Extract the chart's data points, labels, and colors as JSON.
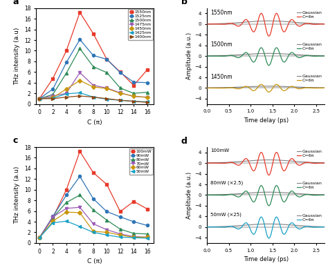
{
  "panel_a": {
    "x": [
      0,
      2,
      4,
      6,
      8,
      10,
      12,
      14,
      16
    ],
    "series": [
      {
        "label": "1550nm",
        "color": "#e8392a",
        "marker": "s",
        "y": [
          1.0,
          4.8,
          10.0,
          17.2,
          13.2,
          8.4,
          6.0,
          3.5,
          6.4
        ]
      },
      {
        "label": "1525nm",
        "color": "#2e75b6",
        "marker": "o",
        "y": [
          1.0,
          2.8,
          7.8,
          12.1,
          9.1,
          8.4,
          5.9,
          4.1,
          4.0
        ]
      },
      {
        "label": "1500nm",
        "color": "#2e8b57",
        "marker": "^",
        "y": [
          1.0,
          1.8,
          5.8,
          10.4,
          7.0,
          5.9,
          3.0,
          2.0,
          2.2
        ]
      },
      {
        "label": "1475nm",
        "color": "#9b59b6",
        "marker": "v",
        "y": [
          1.0,
          1.5,
          2.0,
          5.9,
          3.5,
          3.0,
          2.1,
          1.4,
          1.3
        ]
      },
      {
        "label": "1450nm",
        "color": "#c8960c",
        "marker": "D",
        "y": [
          1.0,
          1.2,
          2.8,
          4.4,
          3.2,
          2.9,
          2.0,
          1.5,
          1.2
        ]
      },
      {
        "label": "1425nm",
        "color": "#17a0c4",
        "marker": "<",
        "y": [
          1.0,
          1.1,
          1.9,
          2.1,
          1.3,
          0.9,
          0.7,
          0.5,
          0.4
        ]
      },
      {
        "label": "1400nm",
        "color": "#8b4513",
        "marker": ">",
        "y": [
          1.0,
          1.0,
          1.3,
          1.5,
          1.3,
          1.0,
          0.7,
          0.5,
          0.3
        ]
      }
    ],
    "xlabel": "C (π)",
    "ylabel": "THz intensity (a.u)",
    "ylim": [
      0,
      18
    ],
    "yticks": [
      0,
      2,
      4,
      6,
      8,
      10,
      12,
      14,
      16,
      18
    ],
    "xticks": [
      0,
      2,
      4,
      6,
      8,
      10,
      12,
      14,
      16
    ],
    "label": "a"
  },
  "panel_b": {
    "t": {
      "start": 0.0,
      "end": 2.7,
      "n": 500
    },
    "rows": [
      {
        "wavelength": "1550nm",
        "color": "#e8392a",
        "gaussian_color": "#808080",
        "amp_chirp": 4.5,
        "amp_gauss": 1.2,
        "t0": 1.42,
        "sigma_gauss": 0.55,
        "sigma_chirp": 0.38,
        "freq": 2.8,
        "phase": -1.57,
        "ylim": [
          -6,
          6
        ],
        "yticks": [
          -4,
          0,
          4
        ]
      },
      {
        "wavelength": "1500nm",
        "color": "#2e8b57",
        "gaussian_color": "#808080",
        "amp_chirp": 3.5,
        "amp_gauss": 1.0,
        "t0": 1.42,
        "sigma_gauss": 0.55,
        "sigma_chirp": 0.38,
        "freq": 2.8,
        "phase": -1.57,
        "ylim": [
          -6,
          6
        ],
        "yticks": [
          -4,
          0,
          4
        ]
      },
      {
        "wavelength": "1450nm",
        "color": "#c8960c",
        "gaussian_color": "#808080",
        "amp_chirp": 1.5,
        "amp_gauss": 0.7,
        "t0": 1.42,
        "sigma_gauss": 0.55,
        "sigma_chirp": 0.4,
        "freq": 2.8,
        "phase": -1.57,
        "ylim": [
          -6,
          6
        ],
        "yticks": [
          -4,
          0,
          4
        ]
      }
    ],
    "xlabel": "Time delay (ps)",
    "ylabel": "Amplitude (a.u.)",
    "label": "b",
    "legend_chirp": "C=6π",
    "legend_gauss": "Gaussian"
  },
  "panel_c": {
    "x": [
      0,
      2,
      4,
      6,
      8,
      10,
      12,
      14,
      16
    ],
    "series": [
      {
        "label": "100mW",
        "color": "#e8392a",
        "marker": "s",
        "y": [
          1.0,
          4.8,
          10.0,
          17.2,
          13.2,
          11.0,
          5.9,
          7.8,
          6.4
        ]
      },
      {
        "label": "90mW",
        "color": "#2e75b6",
        "marker": "o",
        "y": [
          1.0,
          5.0,
          9.0,
          12.5,
          8.3,
          5.9,
          4.9,
          4.0,
          3.3
        ]
      },
      {
        "label": "80mW",
        "color": "#2e8b57",
        "marker": "^",
        "y": [
          1.0,
          4.8,
          7.6,
          9.0,
          6.2,
          4.3,
          2.6,
          1.8,
          1.7
        ]
      },
      {
        "label": "70mW",
        "color": "#9b59b6",
        "marker": "v",
        "y": [
          1.0,
          4.9,
          6.5,
          6.7,
          3.6,
          2.5,
          1.7,
          1.2,
          1.1
        ]
      },
      {
        "label": "60mW",
        "color": "#c8960c",
        "marker": "D",
        "y": [
          1.0,
          4.1,
          5.8,
          5.7,
          2.2,
          2.0,
          1.5,
          1.1,
          1.1
        ]
      },
      {
        "label": "50mW",
        "color": "#17a0c4",
        "marker": "<",
        "y": [
          1.0,
          3.8,
          4.1,
          3.1,
          2.0,
          1.5,
          1.1,
          1.0,
          0.9
        ]
      }
    ],
    "xlabel": "C (π)",
    "ylabel": "THz intensity (a.u)",
    "ylim": [
      0,
      18
    ],
    "yticks": [
      0,
      2,
      4,
      6,
      8,
      10,
      12,
      14,
      16,
      18
    ],
    "xticks": [
      0,
      2,
      4,
      6,
      8,
      10,
      12,
      14,
      16
    ],
    "label": "c"
  },
  "panel_d": {
    "rows": [
      {
        "wavelength": "100mW",
        "color": "#e8392a",
        "amp_chirp": 4.5,
        "amp_gauss": 1.2,
        "t0": 1.42,
        "sigma_gauss": 0.55,
        "sigma_chirp": 0.38,
        "freq": 2.8,
        "phase": -1.57,
        "ylim": [
          -6,
          6
        ],
        "yticks": [
          -4,
          0,
          4
        ],
        "scale_label": null
      },
      {
        "wavelength": "80mW",
        "color": "#2e8b57",
        "amp_chirp": 4.0,
        "amp_gauss": 1.1,
        "t0": 1.42,
        "sigma_gauss": 0.55,
        "sigma_chirp": 0.38,
        "freq": 2.8,
        "phase": -1.57,
        "ylim": [
          -6,
          6
        ],
        "yticks": [
          -4,
          0,
          4
        ],
        "scale_label": "(×2.5)"
      },
      {
        "wavelength": "50mW",
        "color": "#17a0c4",
        "amp_chirp": 4.2,
        "amp_gauss": 1.15,
        "t0": 1.42,
        "sigma_gauss": 0.55,
        "sigma_chirp": 0.38,
        "freq": 2.8,
        "phase": -1.57,
        "ylim": [
          -6,
          6
        ],
        "yticks": [
          -4,
          0,
          4
        ],
        "scale_label": "(×25)"
      }
    ],
    "t": {
      "start": 0.0,
      "end": 2.7,
      "n": 500
    },
    "gaussian_color": "#808080",
    "xlabel": "Time delay (ps)",
    "ylabel": "Amplitude (a.u.)",
    "label": "d",
    "legend_chirp": "C=6π",
    "legend_gauss": "Gaussian"
  }
}
